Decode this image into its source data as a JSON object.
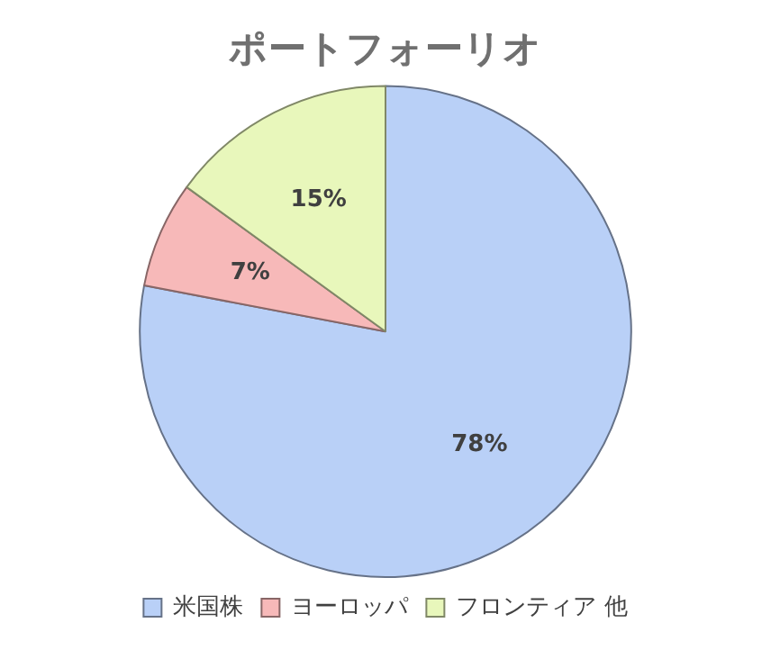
{
  "chart_data": {
    "type": "pie",
    "title": "ポートフォーリオ",
    "categories": [
      "米国株",
      "ヨーロッパ",
      "フロンティア 他"
    ],
    "values": [
      78,
      7,
      15
    ],
    "value_labels": [
      "78%",
      "7%",
      "15%"
    ],
    "colors": [
      "#b9d0f7",
      "#f7b9b9",
      "#e8f7bb"
    ],
    "legend": "bottom"
  }
}
